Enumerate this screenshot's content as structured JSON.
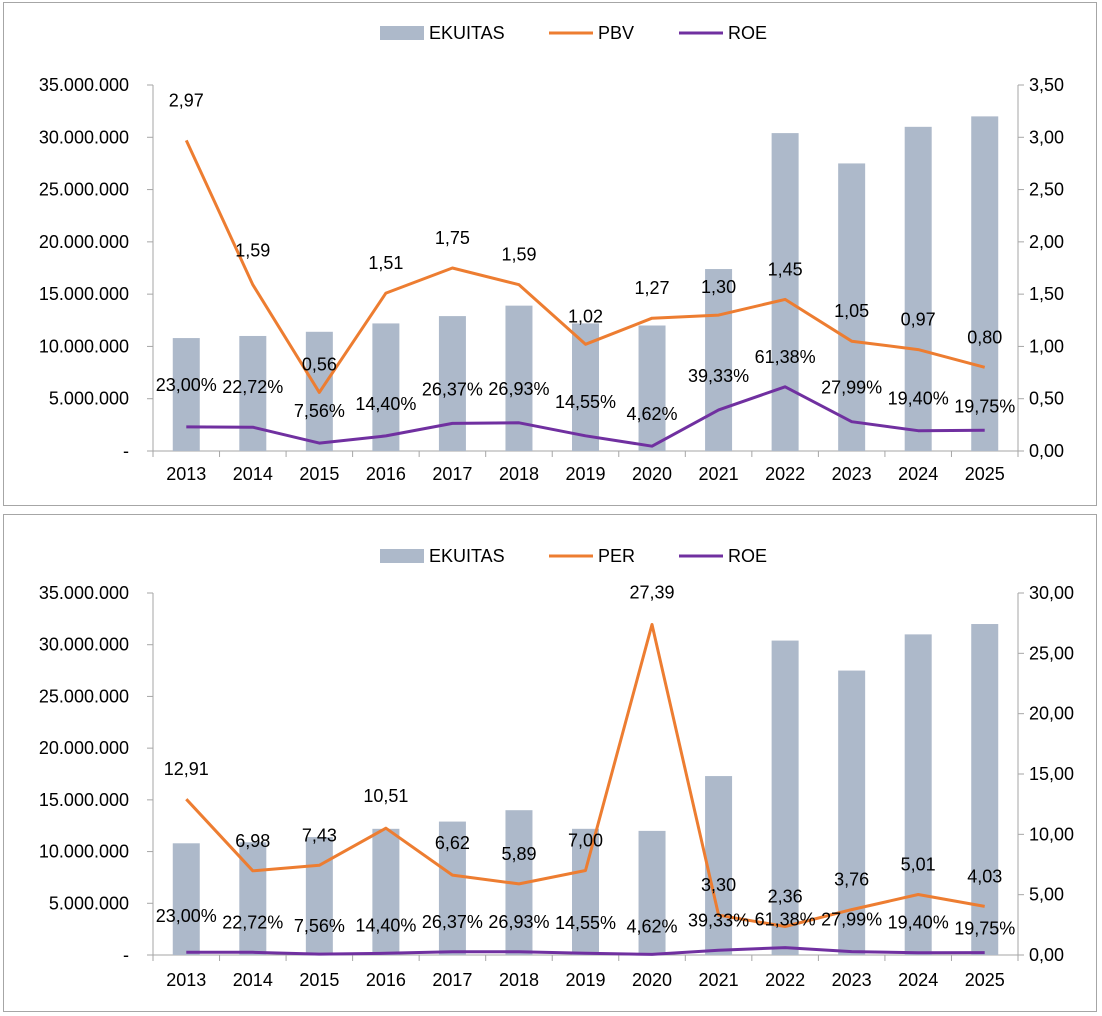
{
  "chart_data": [
    {
      "type": "bar",
      "categories": [
        "2013",
        "2014",
        "2015",
        "2016",
        "2017",
        "2018",
        "2019",
        "2020",
        "2021",
        "2022",
        "2023",
        "2024",
        "2025"
      ],
      "left_axis": {
        "ylim": [
          0,
          35000000
        ],
        "ticks": [
          "-",
          "5.000.000",
          "10.000.000",
          "15.000.000",
          "20.000.000",
          "25.000.000",
          "30.000.000",
          "35.000.000"
        ]
      },
      "right_axis": {
        "ylim": [
          0,
          3.5
        ],
        "ticks": [
          "0,00",
          "0,50",
          "1,00",
          "1,50",
          "2,00",
          "2,50",
          "3,00",
          "3,50"
        ]
      },
      "legend_position": "top-center",
      "series": [
        {
          "name": "EKUITAS",
          "kind": "bar",
          "axis": "left",
          "color": "#adb9ca",
          "values": [
            10800000,
            11000000,
            11400000,
            12200000,
            12900000,
            13900000,
            12200000,
            12000000,
            17400000,
            30400000,
            27500000,
            31000000,
            32000000
          ],
          "labels": []
        },
        {
          "name": "PBV",
          "kind": "line",
          "axis": "right",
          "color": "#ed7d31",
          "values": [
            2.97,
            1.59,
            0.56,
            1.51,
            1.75,
            1.59,
            1.02,
            1.27,
            1.3,
            1.45,
            1.05,
            0.97,
            0.8
          ],
          "labels": [
            "2,97",
            "1,59",
            "0,56",
            "1,51",
            "1,75",
            "1,59",
            "1,02",
            "1,27",
            "1,30",
            "1,45",
            "1,05",
            "0,97",
            "0,80"
          ]
        },
        {
          "name": "ROE",
          "kind": "line",
          "axis": "right",
          "color": "#7030a0",
          "values": [
            0.23,
            0.2272,
            0.0756,
            0.144,
            0.2637,
            0.2693,
            0.1455,
            0.0462,
            0.3933,
            0.6138,
            0.2799,
            0.194,
            0.1975
          ],
          "labels": [
            "23,00%",
            "22,72%",
            "7,56%",
            "14,40%",
            "26,37%",
            "26,93%",
            "14,55%",
            "4,62%",
            "39,33%",
            "61,38%",
            "27,99%",
            "19,40%",
            "19,75%"
          ]
        }
      ]
    },
    {
      "type": "bar",
      "categories": [
        "2013",
        "2014",
        "2015",
        "2016",
        "2017",
        "2018",
        "2019",
        "2020",
        "2021",
        "2022",
        "2023",
        "2024",
        "2025"
      ],
      "left_axis": {
        "ylim": [
          0,
          35000000
        ],
        "ticks": [
          "-",
          "5.000.000",
          "10.000.000",
          "15.000.000",
          "20.000.000",
          "25.000.000",
          "30.000.000",
          "35.000.000"
        ]
      },
      "right_axis": {
        "ylim": [
          0,
          30
        ],
        "ticks": [
          "0,00",
          "5,00",
          "10,00",
          "15,00",
          "20,00",
          "25,00",
          "30,00"
        ]
      },
      "legend_position": "top-center",
      "series": [
        {
          "name": "EKUITAS",
          "kind": "bar",
          "axis": "left",
          "color": "#adb9ca",
          "values": [
            10800000,
            10900000,
            11400000,
            12200000,
            12900000,
            14000000,
            12200000,
            12000000,
            17300000,
            30400000,
            27500000,
            31000000,
            32000000
          ],
          "labels": []
        },
        {
          "name": "PER",
          "kind": "line",
          "axis": "right",
          "color": "#ed7d31",
          "values": [
            12.91,
            6.98,
            7.43,
            10.51,
            6.62,
            5.89,
            7.0,
            27.39,
            3.3,
            2.36,
            3.76,
            5.01,
            4.03
          ],
          "labels": [
            "12,91",
            "6,98",
            "7,43",
            "10,51",
            "6,62",
            "5,89",
            "7,00",
            "27,39",
            "3,30",
            "2,36",
            "3,76",
            "5,01",
            "4,03"
          ]
        },
        {
          "name": "ROE",
          "kind": "line",
          "axis": "right",
          "color": "#7030a0",
          "values": [
            0.23,
            0.2272,
            0.0756,
            0.144,
            0.2637,
            0.2693,
            0.1455,
            0.0462,
            0.3933,
            0.6138,
            0.2799,
            0.194,
            0.1975
          ],
          "labels": [
            "23,00%",
            "22,72%",
            "7,56%",
            "14,40%",
            "26,37%",
            "26,93%",
            "14,55%",
            "4,62%",
            "39,33%",
            "61,38%",
            "27,99%",
            "19,40%",
            "19,75%"
          ]
        }
      ]
    }
  ]
}
